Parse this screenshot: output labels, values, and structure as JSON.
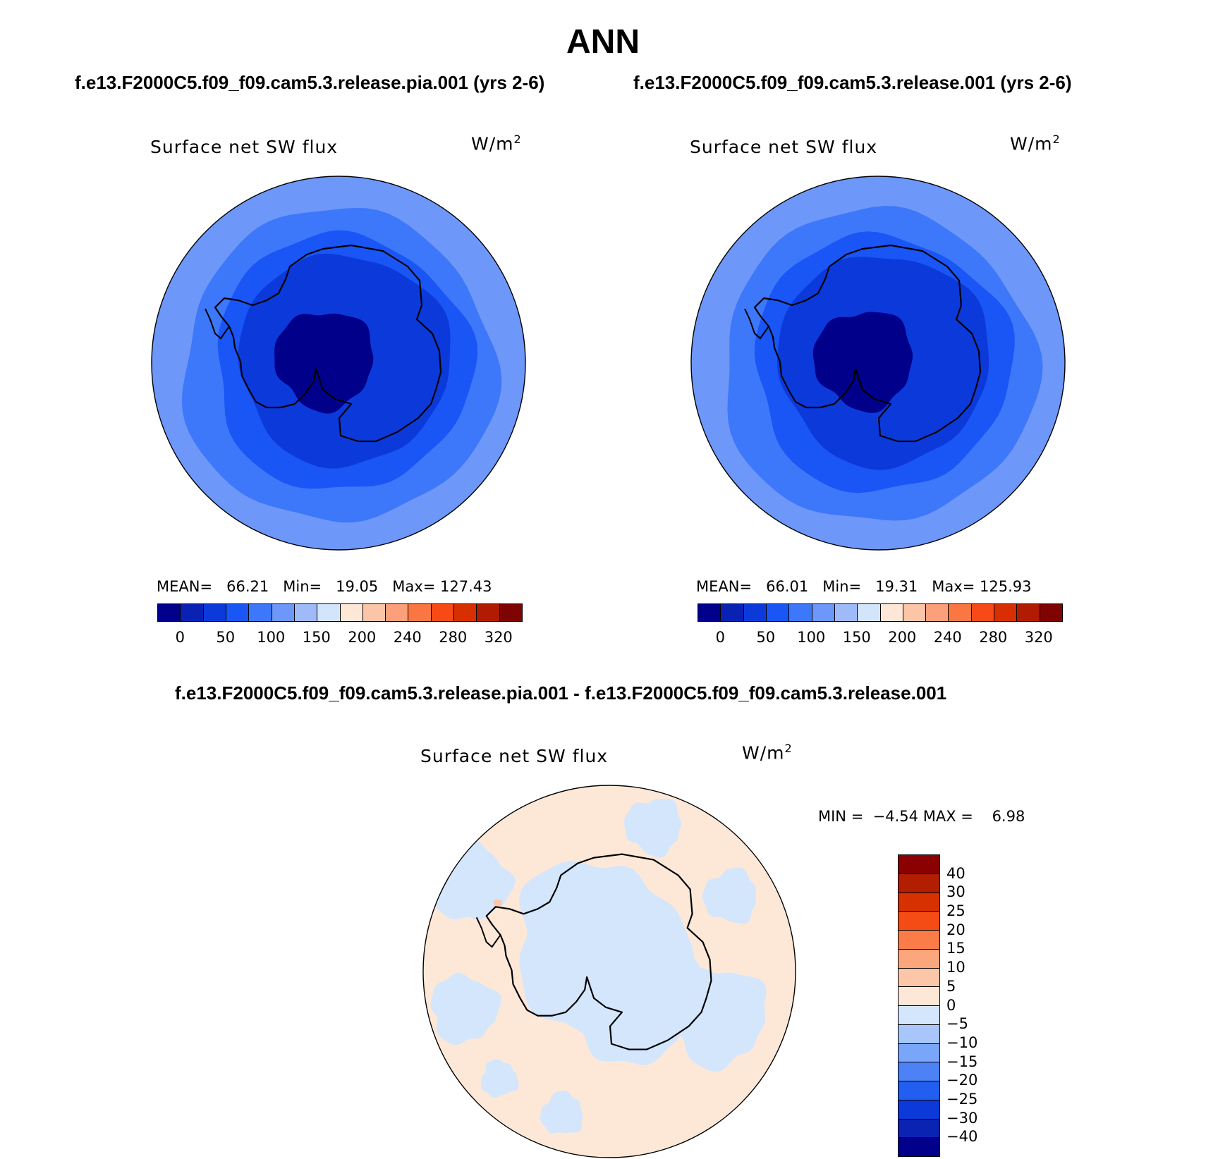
{
  "figure": {
    "title": "ANN",
    "case_left": "f.e13.F2000C5.f09_f09.cam5.3.release.pia.001 (yrs 2-6)",
    "case_right": "f.e13.F2000C5.f09_f09.cam5.3.release.001 (yrs 2-6)",
    "diff_title": "f.e13.F2000C5.f09_f09.cam5.3.release.pia.001 - f.e13.F2000C5.f09_f09.cam5.3.release.001"
  },
  "panels": [
    {
      "variable": "Surface net SW flux",
      "units": "W/m",
      "units_exp": "2",
      "mean_label": "MEAN=",
      "mean": "66.21",
      "min_label": "Min=",
      "min": "19.05",
      "max_label": "Max=",
      "max": "127.43"
    },
    {
      "variable": "Surface net SW flux",
      "units": "W/m",
      "units_exp": "2",
      "mean_label": "MEAN=",
      "mean": "66.01",
      "min_label": "Min=",
      "min": "19.31",
      "max_label": "Max=",
      "max": "125.93"
    }
  ],
  "diff_panel": {
    "variable": "Surface net SW flux",
    "units": "W/m",
    "units_exp": "2",
    "min_label": "MIN =",
    "min": "−4.54",
    "max_label": "MAX =",
    "max": "6.98"
  },
  "colorbar_abs": {
    "colors": [
      "#00008b",
      "#0a22b4",
      "#0c3ada",
      "#1a55f5",
      "#3d77fa",
      "#6d97f8",
      "#9ebaf8",
      "#d2e5fb",
      "#fde8d8",
      "#fcc5a8",
      "#fba07a",
      "#fa7643",
      "#f84a16",
      "#d72f02",
      "#b01b02",
      "#7e0402"
    ],
    "tick_labels": [
      "0",
      "50",
      "100",
      "150",
      "200",
      "240",
      "280",
      "320"
    ]
  },
  "colorbar_diff": {
    "colors_top_to_bottom": [
      "#8b0000",
      "#b21e00",
      "#d73100",
      "#f54b14",
      "#fa7c48",
      "#fba67c",
      "#fcc6a8",
      "#fde8d8",
      "#d4e6fb",
      "#a8c6fb",
      "#7aa6fa",
      "#4c82f6",
      "#225ef0",
      "#0c3ada",
      "#0a23b2",
      "#00008b"
    ],
    "tick_labels": [
      "40",
      "30",
      "25",
      "20",
      "15",
      "10",
      "5",
      "0",
      "−5",
      "−10",
      "−15",
      "−20",
      "−25",
      "−30",
      "−40"
    ]
  },
  "map_colors": {
    "abs_levels": [
      "#00008b",
      "#0c3ada",
      "#1a55f5",
      "#3d77fa",
      "#6d97f8"
    ],
    "diff_levels": [
      "#fde8d8",
      "#d4e6fb",
      "#fcc6a8"
    ],
    "coast": "#000000"
  }
}
